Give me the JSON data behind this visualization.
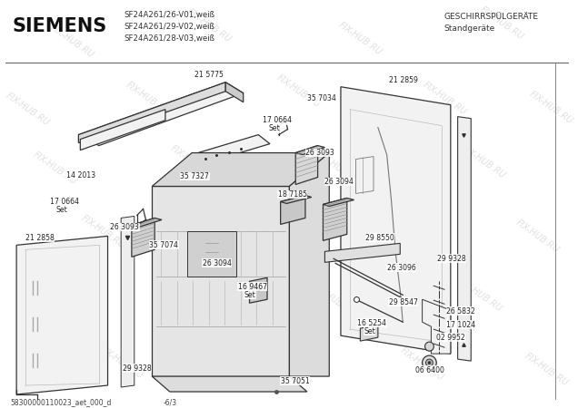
{
  "title_brand": "SIEMENS",
  "subtitle_lines": [
    "SF24A261/26-V01,weiß",
    "SF24A261/29-V02,weiß",
    "SF24A261/28-V03,weiß"
  ],
  "top_right_line1": "GESCHIRRSPÜLGERÄTE",
  "top_right_line2": "Standgeräte",
  "bottom_left": "58300000110023_aet_000_d",
  "bottom_left2": "-6/3",
  "watermark": "FIX-HUB.RU",
  "bg_color": "#ffffff",
  "line_color": "#333333",
  "label_color": "#333333",
  "watermark_color": "#d0d0d0"
}
